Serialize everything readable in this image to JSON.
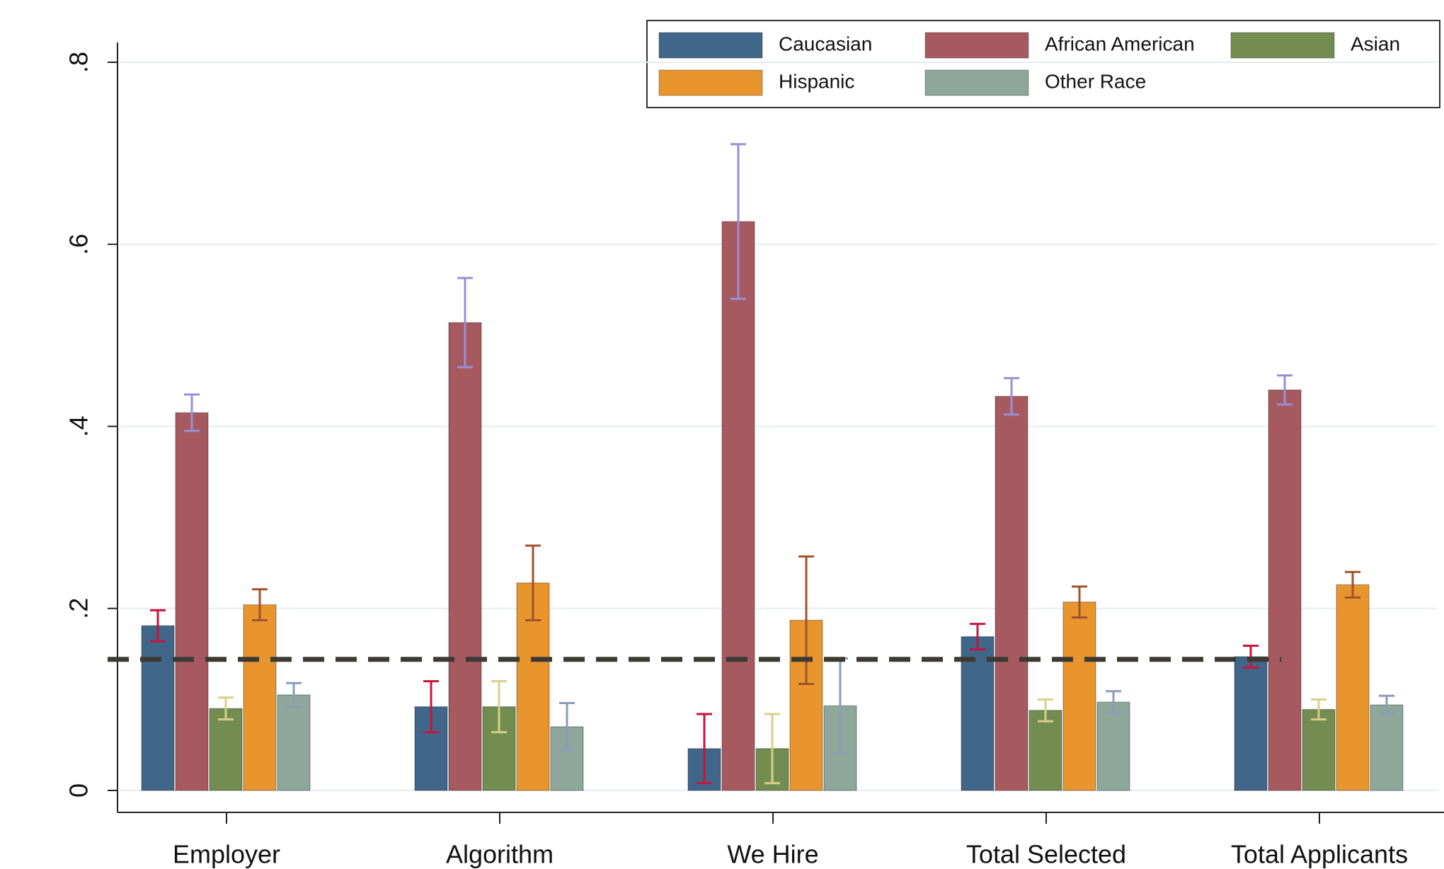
{
  "chart_data": {
    "type": "bar",
    "categories": [
      "Employer",
      "Algorithm",
      "We Hire",
      "Total Selected",
      "Total Applicants"
    ],
    "series": [
      {
        "name": "Caucasian",
        "color": "#40678a",
        "error_color": "#c8143c",
        "values": [
          0.181,
          0.092,
          0.046,
          0.169,
          0.147
        ],
        "errors": [
          0.017,
          0.028,
          0.038,
          0.014,
          0.012
        ]
      },
      {
        "name": "African American",
        "color": "#a65a60",
        "error_color": "#9a8fd8",
        "values": [
          0.415,
          0.514,
          0.625,
          0.433,
          0.44
        ],
        "errors": [
          0.02,
          0.049,
          0.085,
          0.02,
          0.016
        ]
      },
      {
        "name": "Asian",
        "color": "#738c50",
        "error_color": "#d8cf8a",
        "values": [
          0.09,
          0.092,
          0.046,
          0.088,
          0.089
        ],
        "errors": [
          0.012,
          0.028,
          0.038,
          0.012,
          0.011
        ]
      },
      {
        "name": "Hispanic",
        "color": "#e8952e",
        "error_color": "#a0522d",
        "values": [
          0.204,
          0.228,
          0.187,
          0.207,
          0.226
        ],
        "errors": [
          0.017,
          0.041,
          0.07,
          0.017,
          0.014
        ]
      },
      {
        "name": "Other Race",
        "color": "#8da79a",
        "error_color": "#8a9db8",
        "values": [
          0.105,
          0.07,
          0.093,
          0.097,
          0.094
        ],
        "errors": [
          0.013,
          0.026,
          0.052,
          0.012,
          0.01
        ]
      }
    ],
    "reference_line": 0.144,
    "ylim": [
      0,
      0.8
    ],
    "yticks": [
      0,
      {
        "value": 0.2,
        "label": ".2"
      },
      {
        "value": 0.4,
        "label": ".4"
      },
      {
        "value": 0.6,
        "label": ".6"
      },
      {
        "value": 0.8,
        "label": ".8"
      }
    ],
    "grid": true,
    "legend_position": "top-right"
  }
}
